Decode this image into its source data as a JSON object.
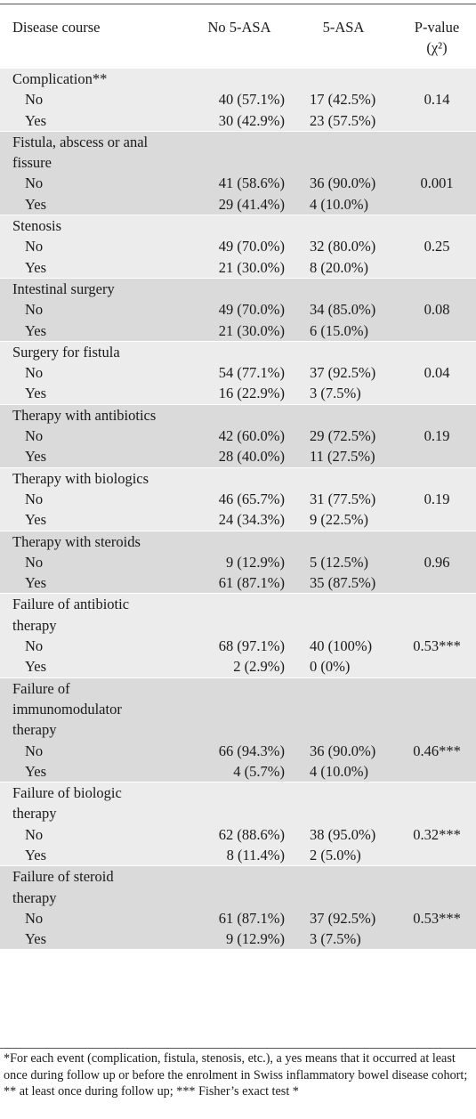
{
  "header": {
    "col1": "Disease course",
    "col2": "No 5-ASA",
    "col3": "5-ASA",
    "col4_line1": "P-value",
    "col4_line2": "(χ²)"
  },
  "rows": [
    {
      "title_lines": [
        "Complication**"
      ],
      "no": [
        "40 (57.1%)",
        "30 (42.9%)"
      ],
      "yes5asa": [
        "17 (42.5%)",
        "23 (57.5%)"
      ],
      "p": "0.14"
    },
    {
      "title_lines": [
        "Fistula, abscess or anal",
        "fissure"
      ],
      "no": [
        "41 (58.6%)",
        "29 (41.4%)"
      ],
      "yes5asa": [
        "36 (90.0%)",
        "4 (10.0%)"
      ],
      "p": "0.001"
    },
    {
      "title_lines": [
        "Stenosis"
      ],
      "no": [
        "49 (70.0%)",
        "21 (30.0%)"
      ],
      "yes5asa": [
        "32 (80.0%)",
        "8 (20.0%)"
      ],
      "p": "0.25"
    },
    {
      "title_lines": [
        "Intestinal surgery"
      ],
      "no": [
        "49 (70.0%)",
        "21 (30.0%)"
      ],
      "yes5asa": [
        "34 (85.0%)",
        "6 (15.0%)"
      ],
      "p": "0.08"
    },
    {
      "title_lines": [
        "Surgery for fistula"
      ],
      "no": [
        "54 (77.1%)",
        "16 (22.9%)"
      ],
      "yes5asa": [
        "37 (92.5%)",
        "3 (7.5%)"
      ],
      "p": "0.04"
    },
    {
      "title_lines": [
        "Therapy with antibiotics"
      ],
      "no": [
        "42 (60.0%)",
        "28 (40.0%)"
      ],
      "yes5asa": [
        "29 (72.5%)",
        "11 (27.5%)"
      ],
      "p": "0.19"
    },
    {
      "title_lines": [
        "Therapy with biologics"
      ],
      "no": [
        "46 (65.7%)",
        "24 (34.3%)"
      ],
      "yes5asa": [
        "31 (77.5%)",
        "9 (22.5%)"
      ],
      "p": "0.19"
    },
    {
      "title_lines": [
        "Therapy with steroids"
      ],
      "no": [
        "9 (12.9%)",
        "61 (87.1%)"
      ],
      "yes5asa": [
        "5 (12.5%)",
        "35 (87.5%)"
      ],
      "p": "0.96"
    },
    {
      "title_lines": [
        "Failure of antibiotic",
        "therapy"
      ],
      "no": [
        "68 (97.1%)",
        "2 (2.9%)"
      ],
      "yes5asa": [
        "40 (100%)",
        "0 (0%)"
      ],
      "p": "0.53***"
    },
    {
      "title_lines": [
        "Failure of",
        "immunomodulator",
        "therapy"
      ],
      "no": [
        "66 (94.3%)",
        "4 (5.7%)"
      ],
      "yes5asa": [
        "36 (90.0%)",
        "4 (10.0%)"
      ],
      "p": "0.46***"
    },
    {
      "title_lines": [
        "Failure of biologic",
        "therapy"
      ],
      "no": [
        "62 (88.6%)",
        "8 (11.4%)"
      ],
      "yes5asa": [
        "38 (95.0%)",
        "2 (5.0%)"
      ],
      "p": "0.32***"
    },
    {
      "title_lines": [
        "Failure of steroid",
        "therapy"
      ],
      "no": [
        "61 (87.1%)",
        "9 (12.9%)"
      ],
      "yes5asa": [
        "37 (92.5%)",
        "3 (7.5%)"
      ],
      "p": "0.53***"
    }
  ],
  "sublabels": {
    "no": "No",
    "yes": "Yes"
  },
  "footnote": "*For each event (complication, fistula, stenosis, etc.), a yes means that it occurred at least once during follow up or before the enrolment in Swiss inflammatory bowel disease cohort; ** at least once during follow up; *** Fisher’s exact test *"
}
